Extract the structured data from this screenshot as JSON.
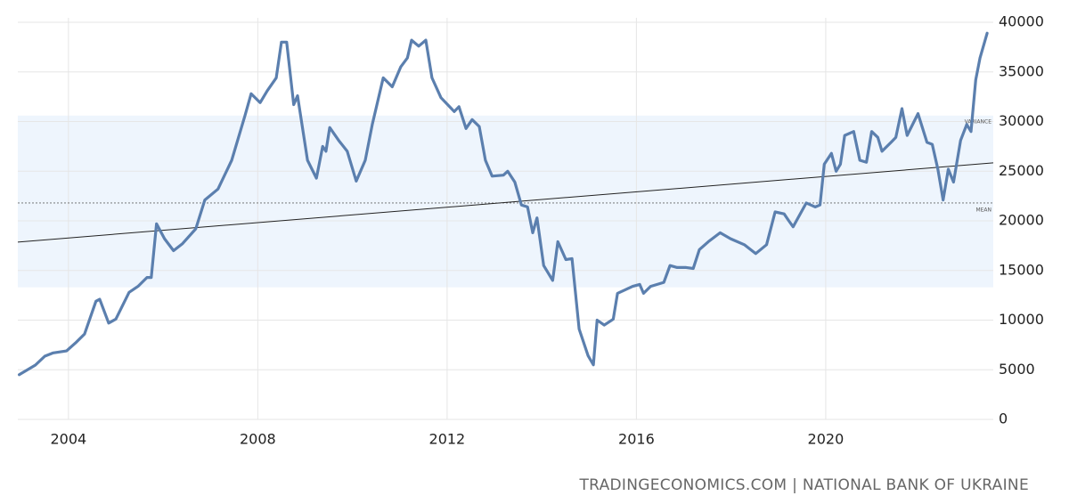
{
  "chart_data": {
    "type": "line",
    "source": "TRADINGECONOMICS.COM | NATIONAL BANK OF UKRAINE",
    "color": "#5b7fae",
    "x": [
      2002.96,
      2003.3,
      2003.5,
      2003.68,
      2003.96,
      2004.15,
      2004.34,
      2004.58,
      2004.66,
      2004.85,
      2005.0,
      2005.28,
      2005.47,
      2005.66,
      2005.75,
      2005.86,
      2006.03,
      2006.22,
      2006.41,
      2006.69,
      2006.88,
      2007.16,
      2007.45,
      2007.73,
      2007.86,
      2008.05,
      2008.2,
      2008.39,
      2008.5,
      2008.61,
      2008.76,
      2008.84,
      2009.05,
      2009.24,
      2009.37,
      2009.44,
      2009.52,
      2009.71,
      2009.89,
      2010.08,
      2010.27,
      2010.42,
      2010.65,
      2010.84,
      2011.02,
      2011.16,
      2011.25,
      2011.4,
      2011.55,
      2011.68,
      2011.87,
      2012.15,
      2012.25,
      2012.4,
      2012.53,
      2012.68,
      2012.81,
      2012.95,
      2013.19,
      2013.28,
      2013.43,
      2013.57,
      2013.7,
      2013.81,
      2013.9,
      2014.04,
      2014.23,
      2014.34,
      2014.51,
      2014.64,
      2014.79,
      2014.98,
      2015.09,
      2015.17,
      2015.32,
      2015.51,
      2015.6,
      2015.92,
      2016.07,
      2016.15,
      2016.3,
      2016.58,
      2016.71,
      2016.86,
      2017.05,
      2017.2,
      2017.33,
      2017.52,
      2017.77,
      2017.99,
      2018.28,
      2018.52,
      2018.75,
      2018.93,
      2019.12,
      2019.22,
      2019.31,
      2019.59,
      2019.78,
      2019.88,
      2019.97,
      2020.12,
      2020.22,
      2020.31,
      2020.4,
      2020.59,
      2020.72,
      2020.86,
      2020.97,
      2021.1,
      2021.19,
      2021.38,
      2021.48,
      2021.61,
      2021.72,
      2021.95,
      2022.14,
      2022.25,
      2022.37,
      2022.48,
      2022.59,
      2022.7,
      2022.85,
      2022.98,
      2023.07,
      2023.17,
      2023.26,
      2023.41
    ],
    "values": [
      4500,
      5470,
      6370,
      6700,
      6900,
      7700,
      8600,
      11900,
      12100,
      9700,
      10100,
      12800,
      13400,
      14300,
      14300,
      19700,
      18200,
      17000,
      17700,
      19200,
      22100,
      23200,
      26100,
      30600,
      32800,
      31900,
      33100,
      34400,
      38000,
      38000,
      31700,
      32600,
      26100,
      24300,
      27500,
      27000,
      29400,
      28100,
      27000,
      24000,
      26100,
      29700,
      34400,
      33500,
      35500,
      36400,
      38200,
      37600,
      38200,
      34400,
      32400,
      31000,
      31500,
      29300,
      30200,
      29500,
      26100,
      24500,
      24600,
      25000,
      23900,
      21600,
      21400,
      18800,
      20300,
      15500,
      14000,
      17900,
      16100,
      16200,
      9100,
      6400,
      5500,
      10000,
      9500,
      10100,
      12700,
      13400,
      13600,
      12700,
      13400,
      13800,
      15500,
      15300,
      15300,
      15200,
      17100,
      17900,
      18800,
      18200,
      17600,
      16700,
      17600,
      20900,
      20700,
      20000,
      19400,
      21800,
      21400,
      21600,
      25700,
      26800,
      25000,
      25700,
      28600,
      29000,
      26100,
      25900,
      29000,
      28400,
      27000,
      27900,
      28400,
      31300,
      28600,
      30800,
      27900,
      27700,
      25200,
      22100,
      25200,
      23900,
      28100,
      29700,
      29000,
      34200,
      36400,
      38900
    ],
    "xlim": [
      2002.93,
      2023.54
    ],
    "xticks": [
      2004,
      2008,
      2012,
      2016,
      2020
    ],
    "ylim": [
      0,
      40000
    ],
    "yticks": [
      0,
      5000,
      10000,
      15000,
      20000,
      25000,
      30000,
      35000,
      40000
    ],
    "grid": true,
    "variance_label": "VARIANCE",
    "variance_band": [
      13300,
      30600
    ],
    "mean_label": "MEAN",
    "mean": 21800,
    "trend": [
      17860,
      25840
    ]
  }
}
